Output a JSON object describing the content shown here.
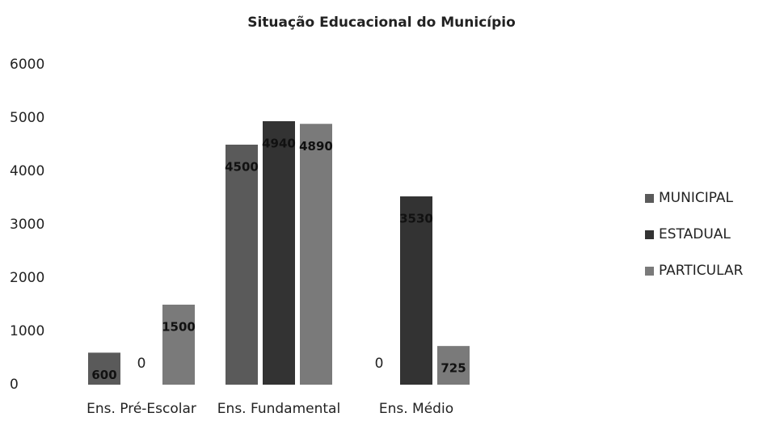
{
  "chart_data": {
    "type": "bar",
    "title": "Situação Educacional do Município",
    "categories": [
      "Ens. Pré-Escolar",
      "Ens. Fundamental",
      "Ens. Médio"
    ],
    "series": [
      {
        "name": "MUNICIPAL",
        "color": "#5a5a5a",
        "values": [
          600,
          4500,
          0
        ]
      },
      {
        "name": "ESTADUAL",
        "color": "#333333",
        "values": [
          0,
          4940,
          3530
        ]
      },
      {
        "name": "PARTICULAR",
        "color": "#7a7a7a",
        "values": [
          1500,
          4890,
          725
        ]
      }
    ],
    "ylim": [
      0,
      6000
    ],
    "yticks": [
      0,
      1000,
      2000,
      3000,
      4000,
      5000,
      6000
    ],
    "grid": false,
    "legend": "right"
  }
}
